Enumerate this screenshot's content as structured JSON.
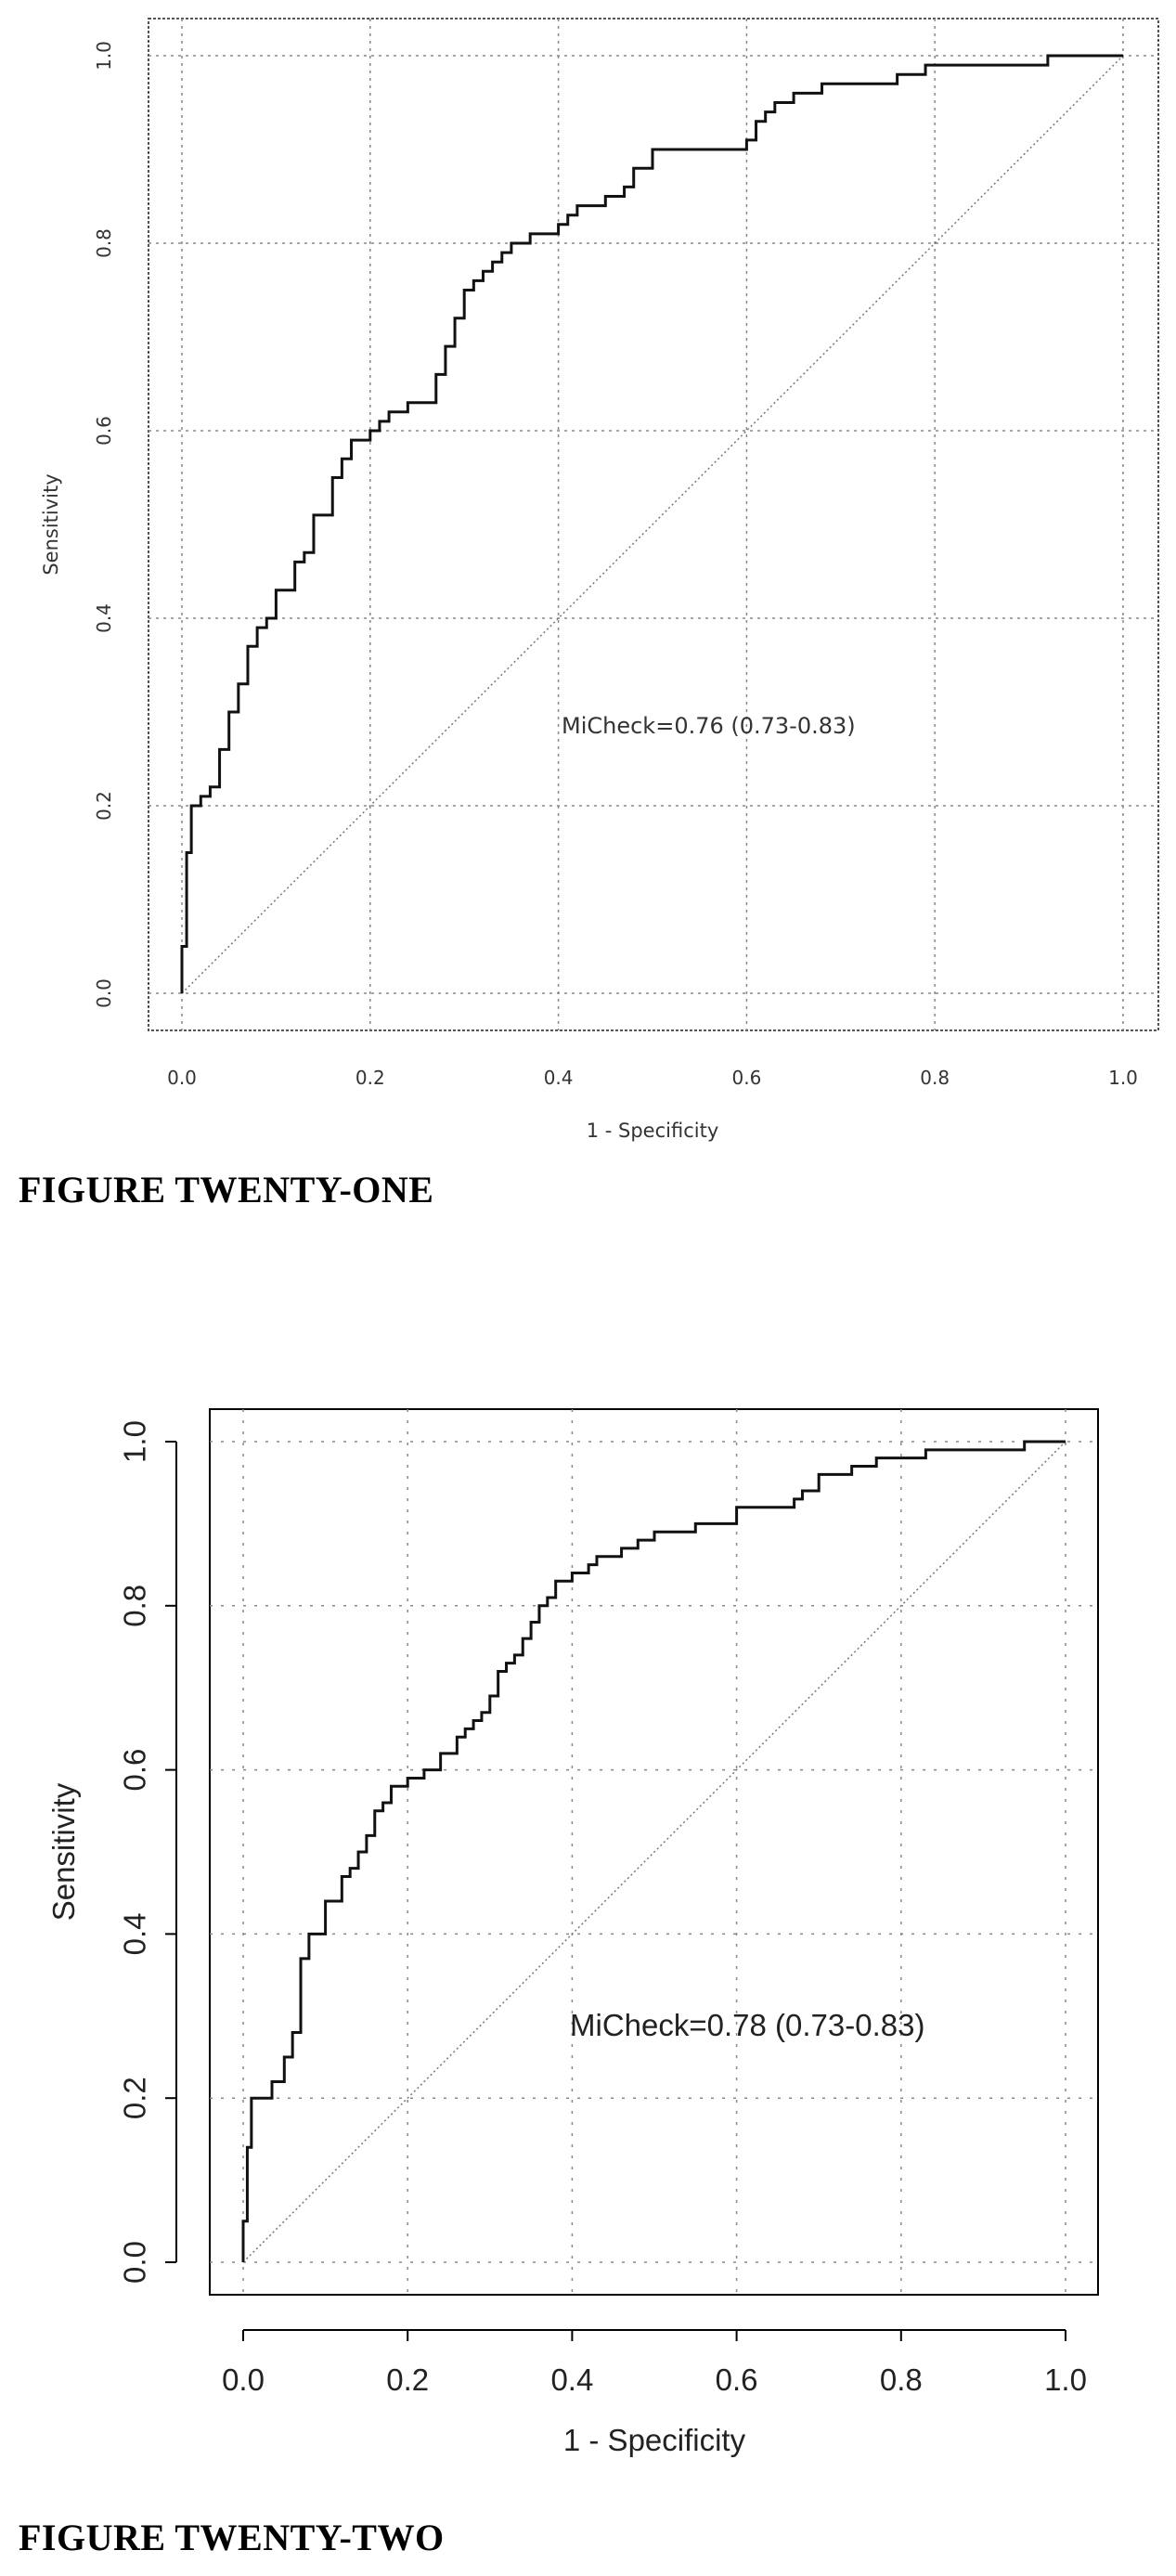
{
  "chart_data": [
    {
      "type": "line",
      "title": "",
      "xlabel": "1 - Specificity",
      "ylabel": "Sensitivity",
      "xlim": [
        0,
        1
      ],
      "ylim": [
        0,
        1
      ],
      "x_ticks": [
        "0.0",
        "0.2",
        "0.4",
        "0.6",
        "0.8",
        "1.0"
      ],
      "y_ticks": [
        "0.0",
        "0.2",
        "0.4",
        "0.6",
        "0.8",
        "1.0"
      ],
      "grid": true,
      "annotation": "MiCheck=0.76 (0.73-0.83)",
      "caption": "FIGURE TWENTY-ONE",
      "series": [
        {
          "values_x": [
            0,
            0,
            0.005,
            0.005,
            0.01,
            0.01,
            0.02,
            0.03,
            0.04,
            0.04,
            0.05,
            0.05,
            0.06,
            0.06,
            0.07,
            0.07,
            0.08,
            0.08,
            0.09,
            0.1,
            0.1,
            0.12,
            0.12,
            0.13,
            0.14,
            0.14,
            0.16,
            0.16,
            0.17,
            0.18,
            0.18,
            0.19,
            0.2,
            0.21,
            0.22,
            0.22,
            0.24,
            0.24,
            0.27,
            0.28,
            0.28,
            0.29,
            0.3,
            0.3,
            0.31,
            0.32,
            0.33,
            0.34,
            0.35,
            0.36,
            0.37,
            0.38,
            0.4,
            0.41,
            0.42,
            0.45,
            0.47,
            0.48,
            0.48,
            0.5,
            0.5,
            0.6,
            0.61,
            0.62,
            0.63,
            0.65,
            0.68,
            0.7,
            0.76,
            0.79,
            0.8,
            0.92,
            0.93,
            1
          ],
          "values_y": [
            0,
            0.05,
            0.05,
            0.15,
            0.18,
            0.2,
            0.21,
            0.22,
            0.24,
            0.26,
            0.27,
            0.3,
            0.32,
            0.33,
            0.35,
            0.37,
            0.38,
            0.39,
            0.4,
            0.41,
            0.43,
            0.45,
            0.46,
            0.47,
            0.48,
            0.51,
            0.52,
            0.55,
            0.57,
            0.58,
            0.59,
            0.59,
            0.6,
            0.61,
            0.62,
            0.62,
            0.63,
            0.63,
            0.66,
            0.68,
            0.69,
            0.72,
            0.74,
            0.75,
            0.76,
            0.77,
            0.78,
            0.79,
            0.8,
            0.8,
            0.81,
            0.81,
            0.82,
            0.83,
            0.84,
            0.85,
            0.86,
            0.87,
            0.88,
            0.89,
            0.9,
            0.91,
            0.93,
            0.94,
            0.95,
            0.96,
            0.97,
            0.97,
            0.98,
            0.99,
            0.99,
            1,
            1,
            1
          ]
        },
        {
          "values_x": [
            0,
            1
          ],
          "values_y": [
            0,
            1
          ]
        }
      ]
    },
    {
      "type": "line",
      "title": "",
      "xlabel": "1 - Specificity",
      "ylabel": "Sensitivity",
      "xlim": [
        0,
        1
      ],
      "ylim": [
        0,
        1
      ],
      "x_ticks": [
        "0.0",
        "0.2",
        "0.4",
        "0.6",
        "0.8",
        "1.0"
      ],
      "y_ticks": [
        "0.0",
        "0.2",
        "0.4",
        "0.6",
        "0.8",
        "1.0"
      ],
      "grid": true,
      "annotation": "MiCheck=0.78 (0.73-0.83)",
      "caption": "FIGURE TWENTY-TWO",
      "series": [
        {
          "values_x": [
            0,
            0,
            0.005,
            0.005,
            0.01,
            0.01,
            0.035,
            0.035,
            0.05,
            0.06,
            0.06,
            0.07,
            0.07,
            0.08,
            0.1,
            0.1,
            0.12,
            0.13,
            0.14,
            0.15,
            0.16,
            0.17,
            0.18,
            0.2,
            0.22,
            0.24,
            0.26,
            0.27,
            0.28,
            0.29,
            0.3,
            0.31,
            0.32,
            0.33,
            0.34,
            0.35,
            0.36,
            0.37,
            0.38,
            0.4,
            0.42,
            0.43,
            0.46,
            0.47,
            0.48,
            0.5,
            0.55,
            0.6,
            0.6,
            0.67,
            0.68,
            0.7,
            0.7,
            0.74,
            0.75,
            0.77,
            0.8,
            0.83,
            0.84,
            0.95,
            0.96,
            1
          ],
          "values_y": [
            0,
            0.05,
            0.05,
            0.14,
            0.17,
            0.2,
            0.2,
            0.22,
            0.25,
            0.26,
            0.28,
            0.3,
            0.37,
            0.4,
            0.4,
            0.44,
            0.47,
            0.48,
            0.5,
            0.52,
            0.55,
            0.56,
            0.58,
            0.59,
            0.6,
            0.62,
            0.64,
            0.65,
            0.66,
            0.67,
            0.69,
            0.72,
            0.73,
            0.74,
            0.76,
            0.78,
            0.8,
            0.81,
            0.83,
            0.84,
            0.85,
            0.86,
            0.87,
            0.87,
            0.88,
            0.89,
            0.9,
            0.91,
            0.92,
            0.93,
            0.94,
            0.95,
            0.96,
            0.97,
            0.97,
            0.98,
            0.98,
            0.99,
            0.99,
            1,
            1,
            1
          ]
        },
        {
          "values_x": [
            0,
            1
          ],
          "values_y": [
            0,
            1
          ]
        }
      ]
    }
  ]
}
